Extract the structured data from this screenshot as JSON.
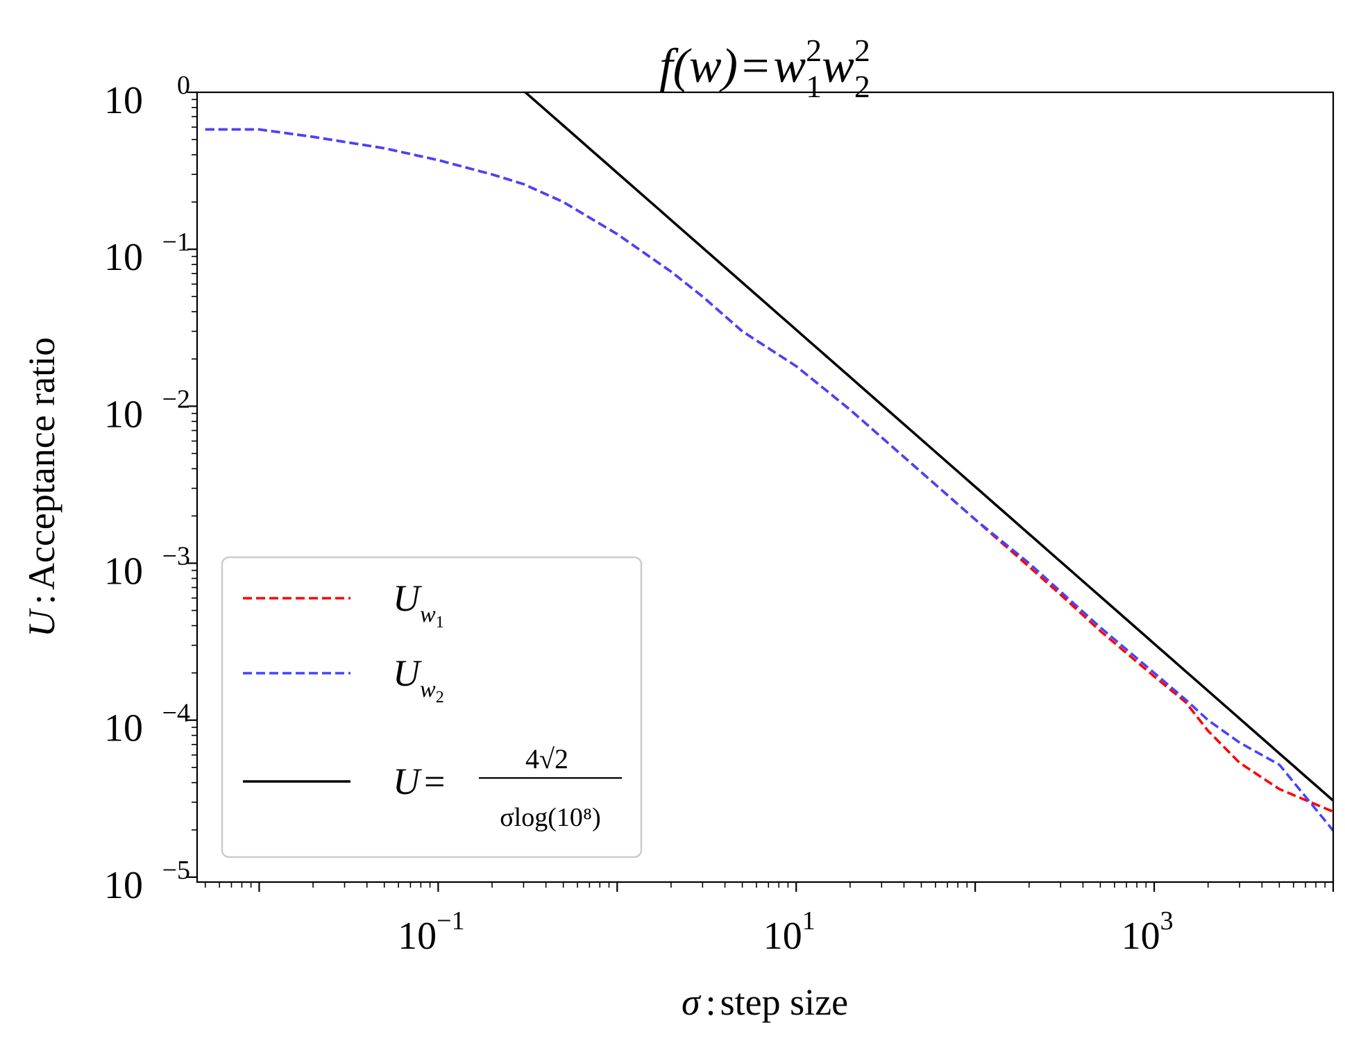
{
  "chart_data": {
    "type": "line",
    "title": "f(w)=w₁²w₂²",
    "title_parts": {
      "lhs": "f(w)",
      "eq": "=",
      "var": "w",
      "sub1": "1",
      "sub2": "2",
      "sup": "2"
    },
    "xlabel": "σ : step size",
    "xlabel_parts": {
      "symbol": "σ",
      "sep": ":",
      "text": "step size"
    },
    "ylabel": "U : Acceptance ratio",
    "ylabel_parts": {
      "symbol": "U",
      "sep": ":",
      "text": "Acceptance ratio"
    },
    "x_scale": "log",
    "y_scale": "log",
    "xlim": [
      0.0045,
      10000
    ],
    "ylim": [
      9.3e-06,
      1
    ],
    "x_ticks": [
      {
        "base": "10",
        "exp": "−1",
        "value": 0.1
      },
      {
        "base": "10",
        "exp": "1",
        "value": 10
      },
      {
        "base": "10",
        "exp": "3",
        "value": 1000
      }
    ],
    "y_ticks": [
      {
        "base": "10",
        "exp": "0",
        "value": 1
      },
      {
        "base": "10",
        "exp": "−1",
        "value": 0.1
      },
      {
        "base": "10",
        "exp": "−2",
        "value": 0.01
      },
      {
        "base": "10",
        "exp": "−3",
        "value": 0.001
      },
      {
        "base": "10",
        "exp": "−4",
        "value": 0.0001
      },
      {
        "base": "10",
        "exp": "−5",
        "value": 1e-05
      }
    ],
    "grid": false,
    "legend_position": "lower-left",
    "series": [
      {
        "name": "U_w1",
        "legend": {
          "base": "U",
          "sub": "w",
          "subsub": "1"
        },
        "color": "#ff0000",
        "style": "dashed",
        "x": [
          0.005,
          0.01,
          0.02,
          0.05,
          0.1,
          0.2,
          0.3,
          0.5,
          1,
          2,
          3,
          5,
          10,
          20,
          50,
          100,
          200,
          300,
          500,
          1000,
          1500,
          2000,
          3000,
          5000,
          10000
        ],
        "y": [
          0.58,
          0.58,
          0.52,
          0.44,
          0.37,
          0.3,
          0.26,
          0.2,
          0.125,
          0.072,
          0.05,
          0.03,
          0.018,
          0.0095,
          0.0038,
          0.0019,
          0.00095,
          0.00063,
          0.00037,
          0.00019,
          0.00013,
          8.55e-05,
          5.35e-05,
          3.64e-05,
          2.61e-05
        ]
      },
      {
        "name": "U_w2",
        "legend": {
          "base": "U",
          "sub": "w",
          "subsub": "2"
        },
        "color": "#4444ff",
        "style": "dashed",
        "x": [
          0.005,
          0.01,
          0.02,
          0.05,
          0.1,
          0.2,
          0.3,
          0.5,
          1,
          2,
          3,
          5,
          10,
          20,
          50,
          100,
          200,
          300,
          500,
          1000,
          1500,
          2000,
          3000,
          5000,
          10000
        ],
        "y": [
          0.58,
          0.58,
          0.52,
          0.44,
          0.37,
          0.3,
          0.26,
          0.2,
          0.125,
          0.072,
          0.05,
          0.03,
          0.018,
          0.0095,
          0.0038,
          0.0019,
          0.001,
          0.00066,
          0.00039,
          0.0002,
          0.000135,
          0.0001,
          7.2e-05,
          5.2e-05,
          1.98e-05
        ]
      },
      {
        "name": "U = 4√2 / (σ log(10⁸))",
        "legend": {
          "lhs": "U",
          "eq": "=",
          "num": "4√2",
          "den": "σlog(10⁸)"
        },
        "color": "#000000",
        "style": "solid",
        "formula_coefficient": 0.307,
        "x_range": [
          0.3,
          10000
        ]
      }
    ]
  }
}
